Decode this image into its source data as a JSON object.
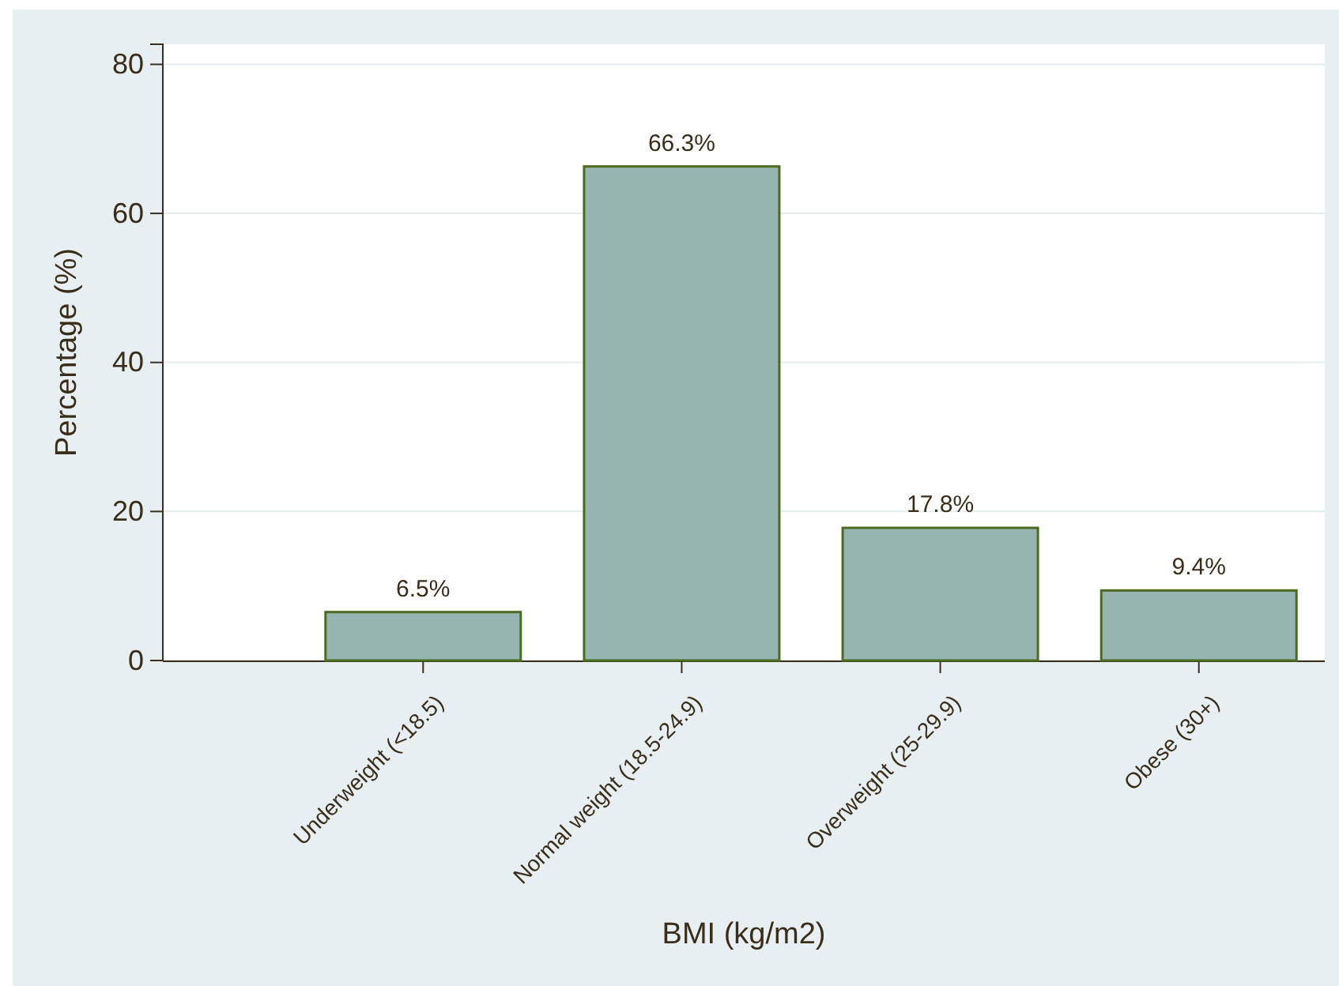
{
  "chart_data": {
    "type": "bar",
    "xlabel": "BMI (kg/m2)",
    "ylabel": "Percentage (%)",
    "categories": [
      "Underweight (<18.5)",
      "Normal weight (18.5-24.9)",
      "Overweight (25-29.9)",
      "Obese (30+)"
    ],
    "values": [
      6.5,
      66.3,
      17.8,
      9.4
    ],
    "value_labels": [
      "6.5%",
      "66.3%",
      "17.8%",
      "9.4%"
    ],
    "color": "#97b5b0",
    "ylim": [
      0,
      82.7
    ],
    "yticks": [
      0,
      20,
      40,
      60,
      80
    ],
    "grid": "y"
  }
}
